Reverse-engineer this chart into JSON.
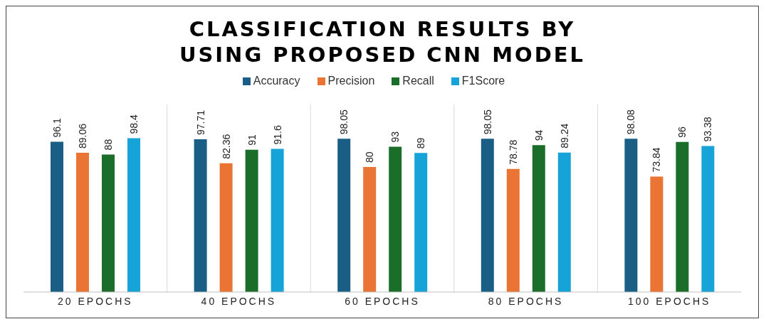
{
  "chart_data": {
    "type": "bar",
    "title": "CLASSIFICATION RESULTS BY USING PROPOSED CNN MODEL",
    "categories": [
      "20 EPOCHS",
      "40 EPOCHS",
      "60 EPOCHS",
      "80 EPOCHS",
      "100 EPOCHS"
    ],
    "series": [
      {
        "name": "Accuracy",
        "color": "#1a5e86",
        "values": [
          96.1,
          97.71,
          98.05,
          98.05,
          98.08
        ]
      },
      {
        "name": "Precision",
        "color": "#e97434",
        "values": [
          89.06,
          82.36,
          80,
          78.78,
          73.84
        ]
      },
      {
        "name": "Recall",
        "color": "#1b6e2a",
        "values": [
          88,
          91,
          93,
          94,
          96
        ]
      },
      {
        "name": "F1Score",
        "color": "#15a3d8",
        "values": [
          98.4,
          91.6,
          89,
          89.24,
          93.38
        ]
      }
    ],
    "ylim": [
      0,
      120
    ],
    "tick_labels": "x",
    "grid": "x",
    "legend": "top",
    "data_labels": true
  }
}
